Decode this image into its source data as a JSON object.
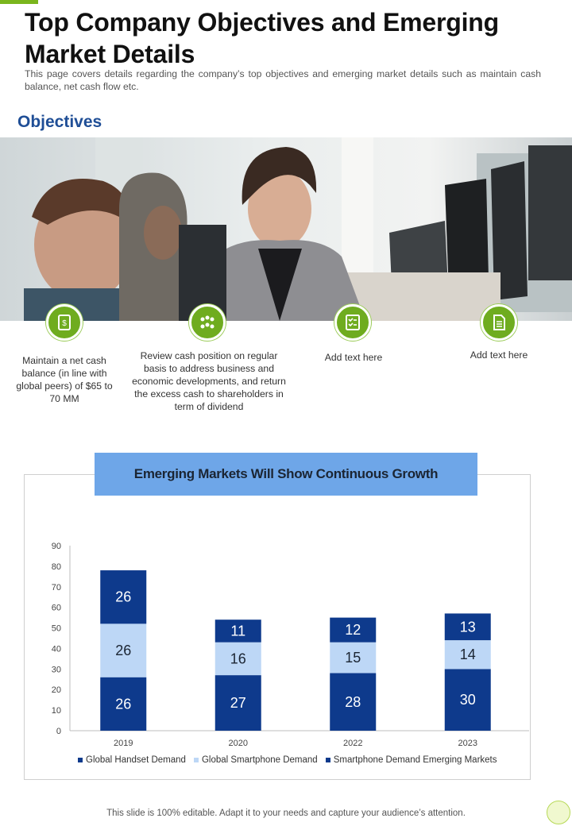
{
  "page": {
    "title": "Top Company Objectives and Emerging Market Details",
    "subtitle": "This page covers details regarding the company’s top objectives and emerging market details such as maintain cash balance, net cash flow etc.",
    "footer": "This slide is 100% editable. Adapt it to your needs and capture your audience’s attention."
  },
  "objectives": {
    "heading": "Objectives",
    "items": [
      {
        "icon": "cash-icon",
        "text": "Maintain a net cash balance (in line with global peers) of $65 to 70 MM"
      },
      {
        "icon": "team-icon",
        "text": "Review cash position on regular basis to address business and economic developments, and return the excess cash to shareholders in term of dividend"
      },
      {
        "icon": "checklist-icon",
        "text": "Add text here"
      },
      {
        "icon": "document-icon",
        "text": "Add text here"
      }
    ]
  },
  "colors": {
    "accent_green": "#6fac1f",
    "dark_blue": "#0e3a8c",
    "light_blue": "#bdd7f6",
    "title_band": "#6ea6e8",
    "heading_blue": "#1f4e96"
  },
  "chart_data": {
    "type": "bar",
    "stacked": true,
    "title": "Emerging Markets Will Show Continuous Growth",
    "categories": [
      "2019",
      "2020",
      "2022",
      "2023"
    ],
    "series": [
      {
        "name": "Global Handset Demand",
        "values": [
          26,
          27,
          28,
          30
        ],
        "color": "#0e3a8c"
      },
      {
        "name": "Global Smartphone Demand",
        "values": [
          26,
          16,
          15,
          14
        ],
        "color": "#bdd7f6"
      },
      {
        "name": "Smartphone Demand Emerging Markets",
        "values": [
          26,
          11,
          12,
          13
        ],
        "color": "#0e3a8c"
      }
    ],
    "ylim": [
      0,
      90
    ],
    "yticks": [
      0,
      10,
      20,
      30,
      40,
      50,
      60,
      70,
      80,
      90
    ],
    "xlabel": "",
    "ylabel": "",
    "legend_position": "bottom",
    "grid": false
  }
}
